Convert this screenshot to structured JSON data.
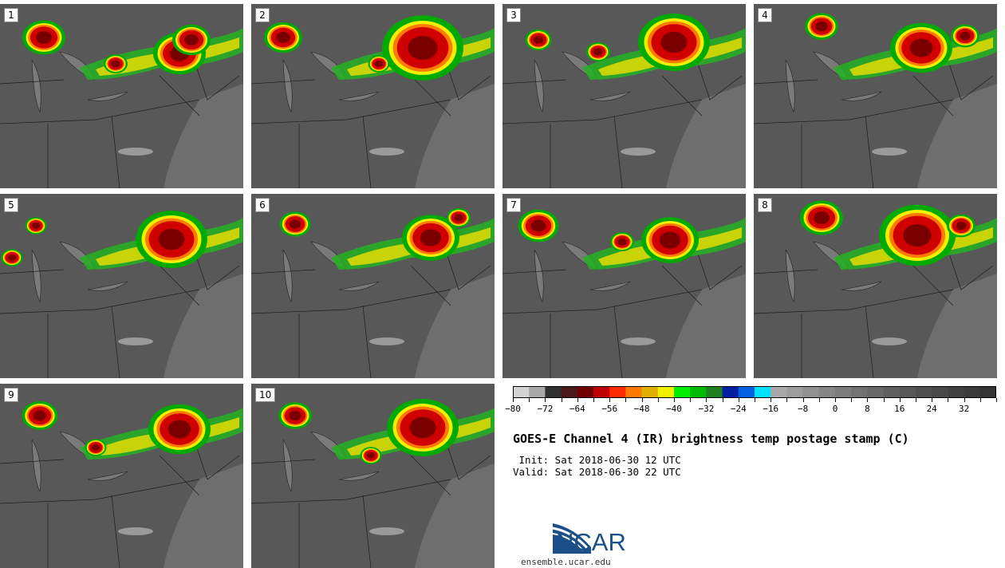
{
  "panels": [
    {
      "label": "1"
    },
    {
      "label": "2"
    },
    {
      "label": "3"
    },
    {
      "label": "4"
    },
    {
      "label": "5"
    },
    {
      "label": "6"
    },
    {
      "label": "7"
    },
    {
      "label": "8"
    },
    {
      "label": "9"
    },
    {
      "label": "10"
    }
  ],
  "colorbar": {
    "min": -80,
    "max": 40,
    "step": 4,
    "colors": [
      "#d3d3d3",
      "#a9a9a9",
      "#303030",
      "#4a1a1a",
      "#6e0000",
      "#c00000",
      "#ff2a00",
      "#ff7a00",
      "#e0b000",
      "#f0f000",
      "#00ee00",
      "#00bb00",
      "#208020",
      "#0020a0",
      "#0060e0",
      "#00e0ff",
      "#a8a8a8",
      "#9c9c9c",
      "#919191",
      "#868686",
      "#7c7c7c",
      "#727272",
      "#686868",
      "#5f5f5f",
      "#575757",
      "#4f4f4f",
      "#484848",
      "#414141",
      "#3a3a3a",
      "#333333"
    ],
    "tick_labels": [
      "-80",
      "-72",
      "-64",
      "-56",
      "-48",
      "-40",
      "-32",
      "-24",
      "-16",
      "-8",
      "0",
      "8",
      "16",
      "24",
      "32"
    ]
  },
  "title": "GOES-E Channel 4 (IR) brightness temp postage stamp (C)",
  "init": " Init: Sat 2018-06-30 12 UTC",
  "valid": "Valid: Sat 2018-06-30 22 UTC",
  "logo": {
    "name": "NCAR",
    "url": "ensemble.ucar.edu",
    "color": "#1a4f8a"
  }
}
